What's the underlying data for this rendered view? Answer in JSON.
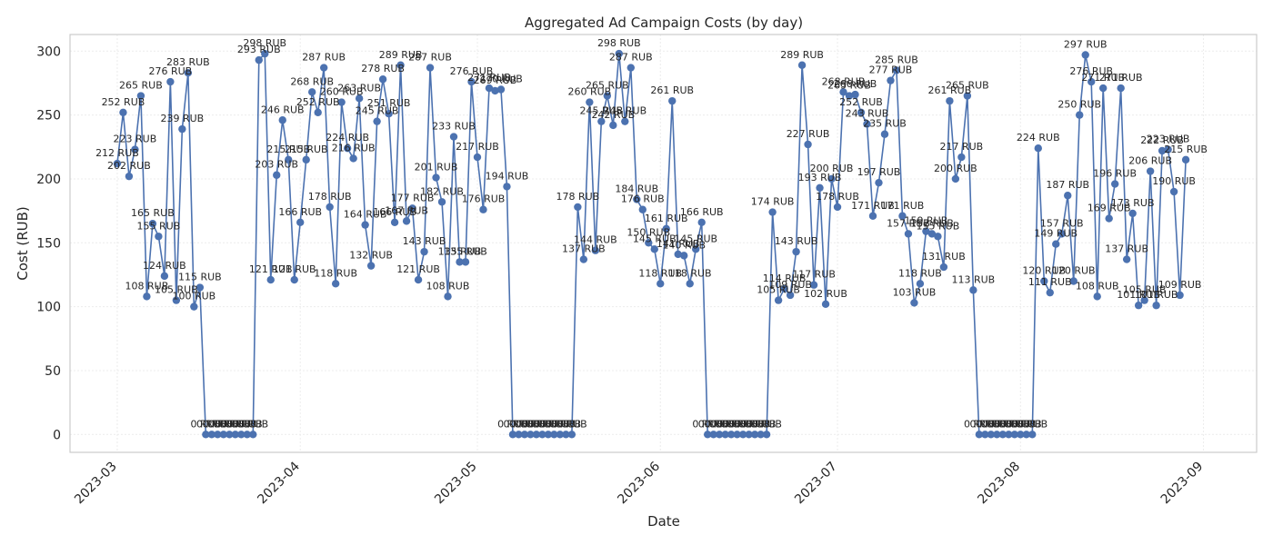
{
  "chart_data": {
    "type": "line",
    "title": "Aggregated Ad Campaign Costs (by day)",
    "xlabel": "Date",
    "ylabel": "Cost (RUB)",
    "label_suffix": " RUB",
    "x_start": "2023-03-01",
    "xlim": [
      "2023-02-21",
      "2023-09-10"
    ],
    "ylim": [
      -14,
      313
    ],
    "yticks": [
      0,
      50,
      100,
      150,
      200,
      250,
      300
    ],
    "xticks": [
      {
        "date": "2023-03-01",
        "label": "2023-03"
      },
      {
        "date": "2023-04-01",
        "label": "2023-04"
      },
      {
        "date": "2023-05-01",
        "label": "2023-05"
      },
      {
        "date": "2023-06-01",
        "label": "2023-06"
      },
      {
        "date": "2023-07-01",
        "label": "2023-07"
      },
      {
        "date": "2023-08-01",
        "label": "2023-08"
      },
      {
        "date": "2023-09-01",
        "label": "2023-09"
      }
    ],
    "grid": true,
    "line_color": "#4c72b0",
    "series": [
      {
        "values": [
          212,
          252,
          202,
          223,
          265,
          108,
          165,
          155,
          124,
          276,
          105,
          239,
          283,
          100,
          115,
          0,
          0,
          0,
          0,
          0,
          0,
          0,
          0,
          0,
          293,
          298,
          121,
          203,
          246,
          215,
          121,
          166,
          215,
          268,
          252,
          287,
          178,
          118,
          260,
          224,
          216,
          263,
          164,
          132,
          245,
          278,
          251,
          166,
          289,
          167,
          177,
          121,
          143,
          287,
          201,
          182,
          108,
          233,
          135,
          135,
          276,
          217,
          176,
          271,
          269,
          270,
          194,
          0,
          0,
          0,
          0,
          0,
          0,
          0,
          0,
          0,
          0,
          0,
          178,
          137,
          260,
          144,
          245,
          265,
          242,
          298,
          245,
          287,
          184,
          176,
          150,
          145,
          118,
          161,
          261,
          141,
          140,
          118,
          145,
          166,
          0,
          0,
          0,
          0,
          0,
          0,
          0,
          0,
          0,
          0,
          0,
          174,
          105,
          114,
          109,
          143,
          289,
          227,
          117,
          193,
          102,
          200,
          178,
          268,
          265,
          266,
          252,
          243,
          171,
          197,
          235,
          277,
          285,
          171,
          157,
          103,
          118,
          159,
          157,
          155,
          131,
          261,
          200,
          217,
          265,
          113,
          0,
          0,
          0,
          0,
          0,
          0,
          0,
          0,
          0,
          0,
          224,
          120,
          111,
          149,
          157,
          187,
          120,
          250,
          297,
          276,
          108,
          271,
          169,
          196,
          271,
          137,
          173,
          101,
          105,
          206,
          101,
          222,
          223,
          190,
          109,
          215
        ]
      }
    ]
  }
}
